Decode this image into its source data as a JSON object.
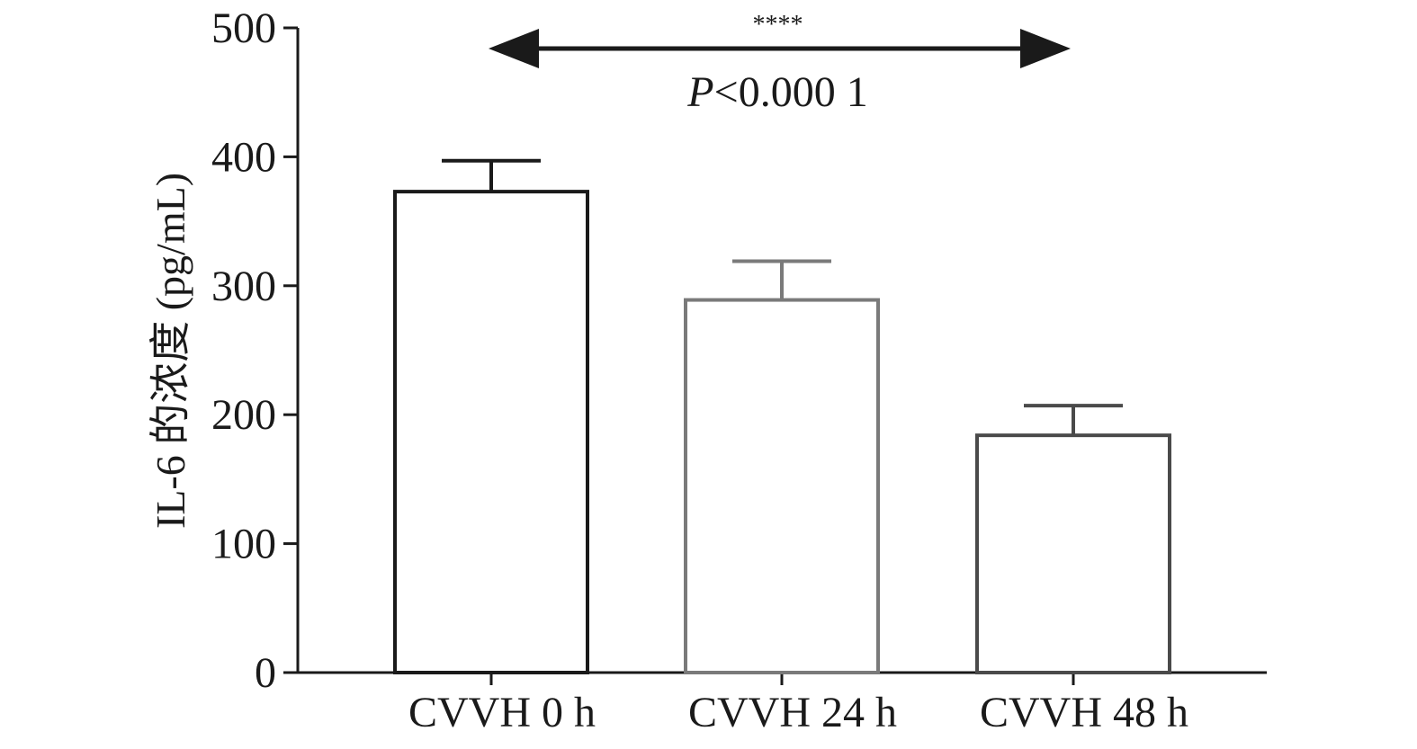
{
  "chart_data": {
    "type": "bar",
    "ylabel": "IL-6 的浓度 (pg/mL)",
    "xlabel": "",
    "ylim": [
      0,
      500
    ],
    "yticks": [
      "0",
      "100",
      "200",
      "300",
      "400",
      "500"
    ],
    "categories": [
      "CVVH 0 h",
      "CVVH 24 h",
      "CVVH 48 h"
    ],
    "values": [
      373,
      289,
      184
    ],
    "error_upper": [
      397,
      319,
      207
    ],
    "grid": false,
    "legend": "none",
    "annotation": {
      "stars": "****",
      "p_letter": "P",
      "p_rest": "<0.000 1",
      "from_category": "CVVH 0 h",
      "to_category": "CVVH 48 h"
    },
    "colors": {
      "bar_fill": "#ffffff",
      "bar_edges": [
        "#1a1a1a",
        "#7a7a7a",
        "#4a4a4a"
      ],
      "axis": "#1a1a1a"
    }
  }
}
